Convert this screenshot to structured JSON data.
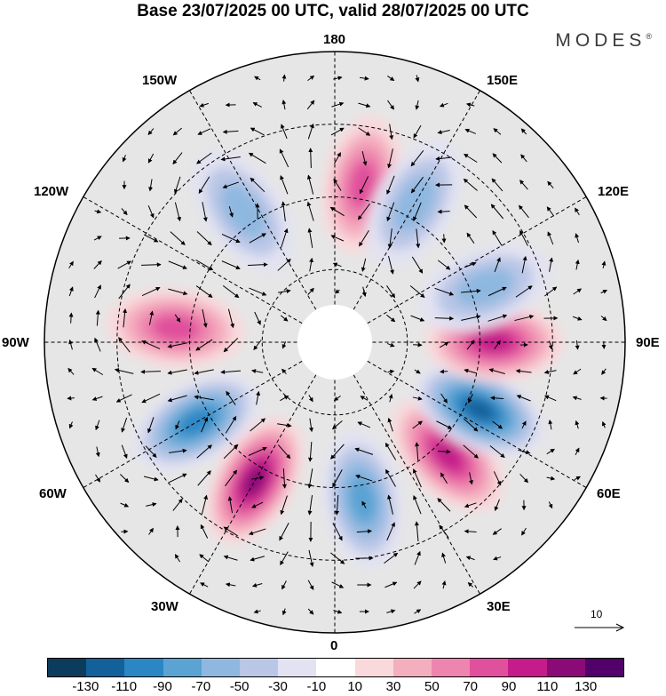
{
  "title": "Base 23/07/2025 00 UTC, valid 28/07/2025 00 UTC",
  "brand": "MODES",
  "brand_mark": "®",
  "longitudes": {
    "top": "180",
    "bottom": "0",
    "left": "90W",
    "right": "90E",
    "ul1": "150W",
    "ul2": "120W",
    "ur1": "150E",
    "ur2": "120E",
    "ll1": "60W",
    "ll2": "30W",
    "lr1": "60E",
    "lr2": "30E"
  },
  "reference_vector": "10",
  "colorbar": {
    "ticks": [
      "-130",
      "-110",
      "-90",
      "-70",
      "-50",
      "-30",
      "-10",
      "10",
      "30",
      "50",
      "70",
      "90",
      "110",
      "130"
    ],
    "colors": [
      "#0b3c5d",
      "#13619b",
      "#2a87c4",
      "#5aa3d3",
      "#8fb8e0",
      "#b9c6e6",
      "#e2e2f2",
      "#ffffff",
      "#f9d9db",
      "#f4afbf",
      "#ee85ae",
      "#e0509c",
      "#c41c8a",
      "#8a0a78",
      "#52006a"
    ]
  },
  "chart_data": {
    "type": "polar-map",
    "projection": "north polar stereographic",
    "field": "anomaly (shaded) with wind vectors",
    "anomaly_centers": [
      {
        "lon": 170,
        "sign": "positive",
        "strength": 60
      },
      {
        "lon": 150,
        "sign": "negative",
        "strength": -40
      },
      {
        "lon": -145,
        "sign": "negative",
        "strength": -50
      },
      {
        "lon": -95,
        "sign": "positive",
        "strength": 60
      },
      {
        "lon": -60,
        "sign": "negative",
        "strength": -80
      },
      {
        "lon": -30,
        "sign": "positive",
        "strength": 100
      },
      {
        "lon": 10,
        "sign": "negative",
        "strength": -60
      },
      {
        "lon": 45,
        "sign": "positive",
        "strength": 90
      },
      {
        "lon": 65,
        "sign": "negative",
        "strength": -100
      },
      {
        "lon": 90,
        "sign": "positive",
        "strength": 80
      },
      {
        "lon": 110,
        "sign": "negative",
        "strength": -40
      }
    ]
  }
}
